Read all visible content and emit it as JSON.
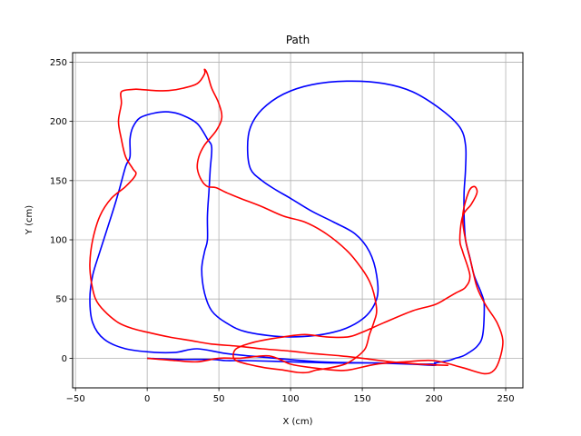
{
  "chart_data": {
    "type": "line",
    "title": "Path",
    "xlabel": "X (cm)",
    "ylabel": "Y (cm)",
    "xlim": [
      -52,
      262
    ],
    "ylim": [
      -25,
      258
    ],
    "xticks": [
      -50,
      0,
      50,
      100,
      150,
      200,
      250
    ],
    "yticks": [
      0,
      50,
      100,
      150,
      200,
      250
    ],
    "grid": true,
    "series": [
      {
        "color": "#0000ff",
        "x": [
          0,
          20,
          45,
          55,
          70,
          100,
          130,
          160,
          185,
          200,
          200,
          185,
          160,
          120,
          80,
          55,
          35,
          20,
          5,
          -15,
          -30,
          -38,
          -40,
          -38,
          -33,
          -25,
          -20,
          -15,
          -12,
          -12,
          -10,
          -5,
          5,
          15,
          25,
          35,
          42,
          45,
          44,
          43,
          42,
          42,
          40,
          38,
          40,
          45,
          55,
          70,
          100,
          130,
          150,
          160,
          160,
          155,
          145,
          130,
          115,
          100,
          90,
          80,
          72,
          70,
          72,
          80,
          95,
          115,
          140,
          165,
          185,
          205,
          218,
          222,
          222,
          221,
          221,
          222,
          225,
          228,
          233,
          235,
          234,
          230,
          222,
          218,
          215,
          210,
          200
        ],
        "y": [
          0,
          -1,
          -1,
          -2,
          -2,
          -3,
          -4,
          -4,
          -5,
          -5,
          -6,
          -5,
          -4,
          -3,
          1,
          4,
          8,
          5,
          5,
          8,
          16,
          30,
          50,
          70,
          90,
          120,
          140,
          162,
          170,
          185,
          195,
          203,
          207,
          208,
          205,
          198,
          185,
          178,
          160,
          140,
          120,
          100,
          90,
          75,
          55,
          40,
          30,
          22,
          18,
          22,
          33,
          50,
          70,
          90,
          105,
          115,
          124,
          135,
          142,
          150,
          160,
          178,
          195,
          210,
          223,
          231,
          234,
          232,
          225,
          210,
          195,
          180,
          160,
          140,
          120,
          100,
          85,
          70,
          55,
          45,
          20,
          10,
          3,
          1,
          0,
          -2,
          -4
        ]
      },
      {
        "color": "#ff0000",
        "x": [
          0,
          20,
          35,
          50,
          65,
          85,
          100,
          115,
          130,
          140,
          160,
          180,
          200,
          220,
          235,
          242,
          246,
          248,
          244,
          236,
          230,
          226,
          222,
          220,
          224,
          228,
          230,
          226,
          220,
          218,
          220,
          225,
          222,
          215,
          208,
          200,
          185,
          165,
          150,
          140,
          125,
          110,
          95,
          80,
          70,
          62,
          60,
          62,
          70,
          82,
          95,
          105,
          112,
          118,
          128,
          138,
          145,
          152,
          155,
          158,
          160,
          158,
          155,
          150,
          140,
          125,
          110,
          95,
          80,
          65,
          55,
          48,
          42,
          38,
          35,
          36,
          40,
          48,
          52,
          50,
          45,
          42,
          40,
          40,
          35,
          25,
          15,
          5,
          -5,
          -10,
          -18,
          -18,
          -20,
          -18,
          -15,
          -10,
          -8,
          -15,
          -25,
          -33,
          -38,
          -40,
          -39,
          -36,
          -30,
          -20,
          -10,
          0,
          15,
          30,
          45,
          65,
          80,
          100,
          115,
          135,
          150,
          170,
          190,
          210
        ],
        "y": [
          0,
          -2,
          -3,
          0,
          0,
          2,
          -5,
          -8,
          -10,
          -10,
          -5,
          -3,
          -2,
          -8,
          -13,
          -10,
          0,
          15,
          30,
          45,
          60,
          80,
          100,
          120,
          140,
          145,
          140,
          130,
          120,
          100,
          90,
          70,
          60,
          55,
          50,
          45,
          40,
          30,
          22,
          18,
          18,
          20,
          18,
          15,
          12,
          8,
          2,
          -2,
          -5,
          -8,
          -10,
          -12,
          -12,
          -10,
          -8,
          -5,
          0,
          8,
          20,
          30,
          40,
          55,
          65,
          75,
          90,
          105,
          115,
          120,
          128,
          135,
          140,
          144,
          145,
          150,
          160,
          170,
          180,
          192,
          203,
          215,
          228,
          240,
          244,
          240,
          232,
          228,
          226,
          226,
          227,
          227,
          225,
          215,
          200,
          185,
          170,
          160,
          155,
          145,
          135,
          120,
          100,
          80,
          65,
          50,
          40,
          30,
          25,
          22,
          18,
          15,
          12,
          10,
          8,
          6,
          4,
          2,
          0,
          -3,
          -5,
          -6
        ]
      }
    ]
  }
}
